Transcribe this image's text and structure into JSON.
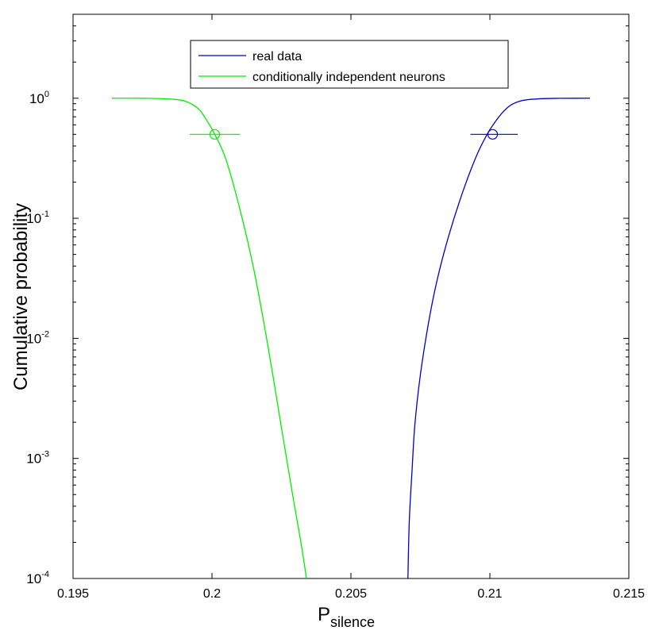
{
  "chart_data": {
    "type": "line",
    "title": "",
    "xlabel": "P",
    "xlabel_subscript": "silence",
    "ylabel": "Cumulative probability",
    "xlim": [
      0.195,
      0.215
    ],
    "ylim": [
      0.0001,
      5
    ],
    "yscale": "log",
    "grid": false,
    "legend_position": "top",
    "x_ticks": [
      {
        "value": 0.195,
        "label": "0.195"
      },
      {
        "value": 0.2,
        "label": "0.2"
      },
      {
        "value": 0.205,
        "label": "0.205"
      },
      {
        "value": 0.21,
        "label": "0.21"
      },
      {
        "value": 0.215,
        "label": "0.215"
      }
    ],
    "y_ticks": [
      {
        "value": 1,
        "base": "10",
        "exp": "0"
      },
      {
        "value": 0.1,
        "base": "10",
        "exp": "-1"
      },
      {
        "value": 0.01,
        "base": "10",
        "exp": "-2"
      },
      {
        "value": 0.001,
        "base": "10",
        "exp": "-3"
      },
      {
        "value": 0.0001,
        "base": "10",
        "exp": "-4"
      }
    ],
    "series": [
      {
        "name": "real data",
        "color": "#0000cc",
        "x": [
          0.20705,
          0.2071,
          0.2072,
          0.2073,
          0.2075,
          0.2078,
          0.2081,
          0.2085,
          0.209,
          0.2095,
          0.2099,
          0.2102,
          0.2105,
          0.2108,
          0.2112,
          0.2118,
          0.2125,
          0.2136
        ],
        "y": [
          0.0001,
          0.0003,
          0.0008,
          0.0019,
          0.005,
          0.0138,
          0.0305,
          0.069,
          0.16,
          0.324,
          0.5,
          0.64,
          0.78,
          0.89,
          0.96,
          0.99,
          0.998,
          1.0
        ],
        "marker": {
          "x": 0.2101,
          "y": 0.5,
          "err_low": 0.2093,
          "err_high": 0.211
        }
      },
      {
        "name": "conditionally independent neurons",
        "color": "#00ee00",
        "x": [
          0.1964,
          0.1975,
          0.1983,
          0.199,
          0.1995,
          0.1998,
          0.2001,
          0.2005,
          0.201,
          0.2015,
          0.202,
          0.2025,
          0.2029,
          0.2032,
          0.2034
        ],
        "y": [
          1.0,
          0.999,
          0.99,
          0.95,
          0.82,
          0.66,
          0.5,
          0.31,
          0.12,
          0.038,
          0.009,
          0.0018,
          0.0005,
          0.0002,
          0.0001
        ],
        "marker": {
          "x": 0.2001,
          "y": 0.5,
          "err_low": 0.1992,
          "err_high": 0.201
        }
      }
    ]
  }
}
